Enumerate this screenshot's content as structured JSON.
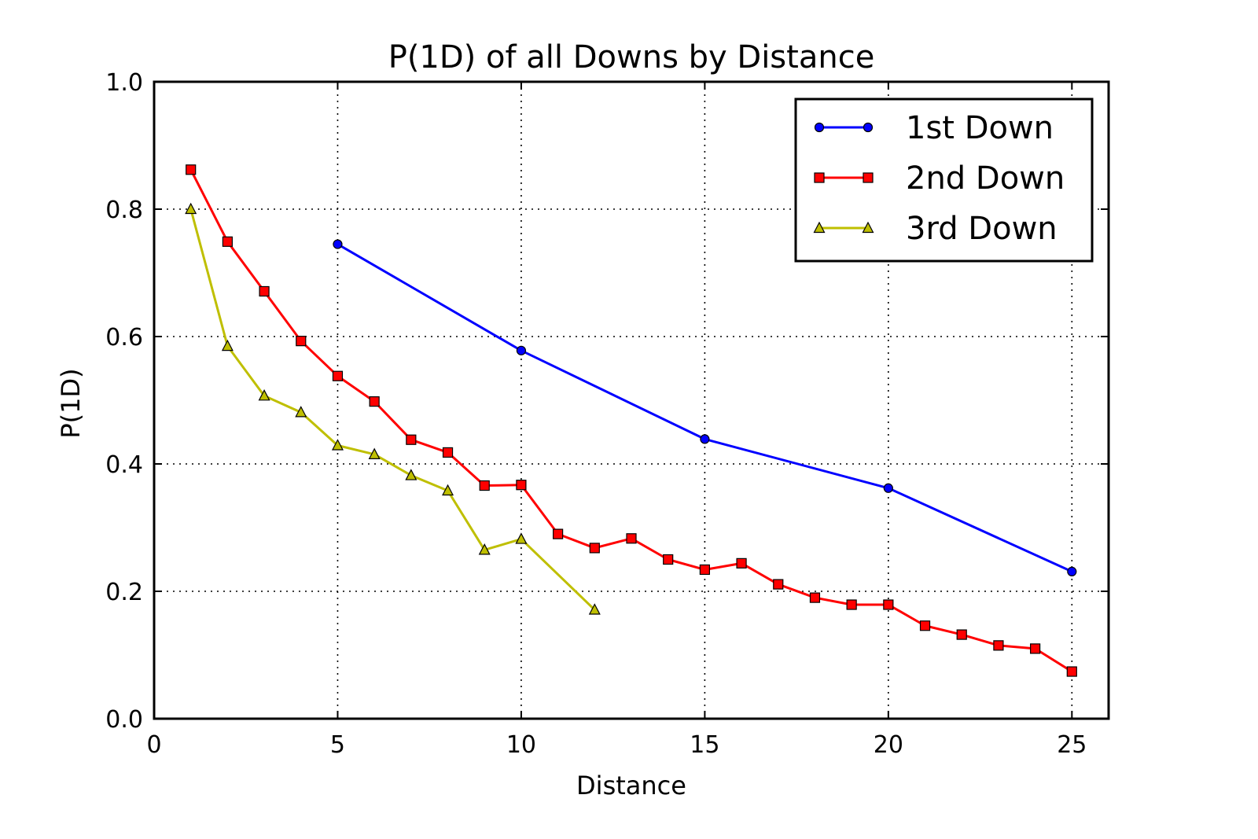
{
  "chart_data": {
    "type": "line",
    "title": "P(1D) of all Downs by Distance",
    "xlabel": "Distance",
    "ylabel": "P(1D)",
    "xlim": [
      0,
      26
    ],
    "ylim": [
      0.0,
      1.0
    ],
    "xticks": [
      "0",
      "5",
      "10",
      "15",
      "20",
      "25"
    ],
    "yticks": [
      "0.0",
      "0.2",
      "0.4",
      "0.6",
      "0.8",
      "1.0"
    ],
    "grid": true,
    "legend_position": "top-right",
    "series": [
      {
        "name": "1st Down",
        "color": "#0000ff",
        "marker": "circle",
        "x": [
          5,
          10,
          15,
          20,
          25
        ],
        "y": [
          0.745,
          0.578,
          0.439,
          0.362,
          0.231
        ]
      },
      {
        "name": "2nd Down",
        "color": "#ff0000",
        "marker": "square",
        "x": [
          1,
          2,
          3,
          4,
          5,
          6,
          7,
          8,
          9,
          10,
          11,
          12,
          13,
          14,
          15,
          16,
          17,
          18,
          19,
          20,
          21,
          22,
          23,
          24,
          25
        ],
        "y": [
          0.862,
          0.749,
          0.671,
          0.593,
          0.538,
          0.498,
          0.438,
          0.418,
          0.366,
          0.367,
          0.29,
          0.268,
          0.283,
          0.25,
          0.234,
          0.244,
          0.211,
          0.19,
          0.179,
          0.179,
          0.146,
          0.132,
          0.115,
          0.11,
          0.074
        ]
      },
      {
        "name": "3rd Down",
        "color": "#bfbf00",
        "marker": "triangle",
        "x": [
          1,
          2,
          3,
          4,
          5,
          6,
          7,
          8,
          9,
          10,
          12
        ],
        "y": [
          0.8,
          0.585,
          0.507,
          0.481,
          0.429,
          0.415,
          0.382,
          0.358,
          0.265,
          0.282,
          0.171
        ]
      }
    ]
  }
}
